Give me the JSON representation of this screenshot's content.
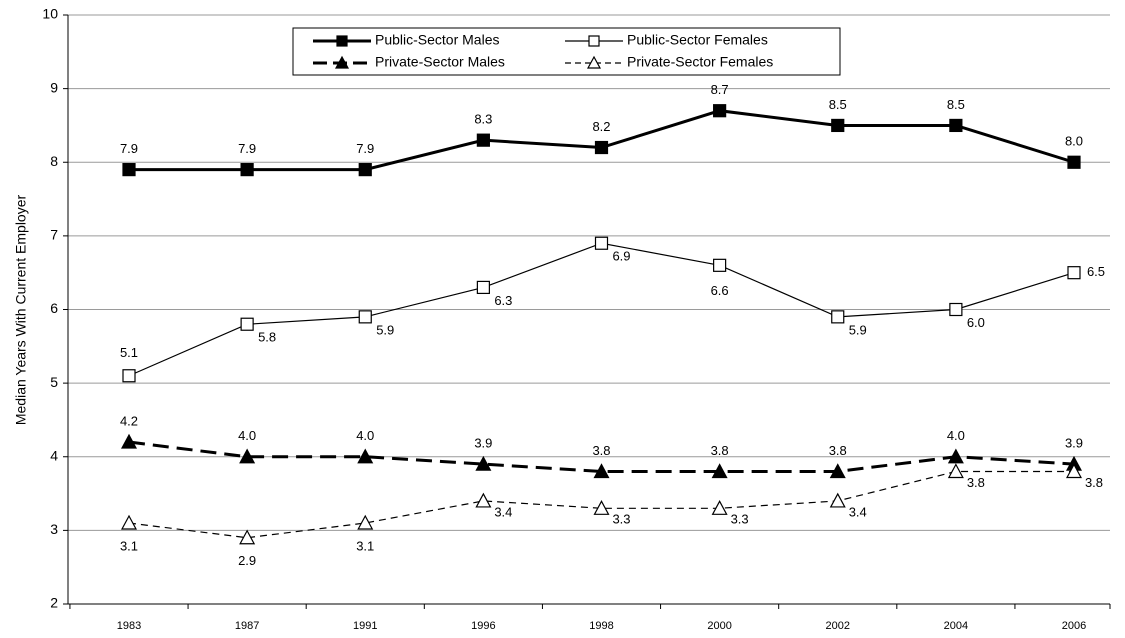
{
  "chart_data": {
    "type": "line",
    "y_label": "Median Years With Current Employer",
    "categories": [
      "1983",
      "1987",
      "1991",
      "1996",
      "1998",
      "2000",
      "2002",
      "2004",
      "2006"
    ],
    "ylim": [
      2,
      10
    ],
    "yticks": [
      2,
      3,
      4,
      5,
      6,
      7,
      8,
      9,
      10
    ],
    "grid": true,
    "series": [
      {
        "name": "Public-Sector Males",
        "color": "#000000",
        "line_width": 3,
        "dashed": false,
        "marker": "square",
        "filled": true,
        "values": [
          7.9,
          7.9,
          7.9,
          8.3,
          8.2,
          8.7,
          8.5,
          8.5,
          8.0
        ],
        "value_labels": [
          "7.9",
          "7.9",
          "7.9",
          "8.3",
          "8.2",
          "8.7",
          "8.5",
          "8.5",
          "8.0"
        ]
      },
      {
        "name": "Public-Sector Females",
        "color": "#000000",
        "line_width": 1.2,
        "dashed": false,
        "marker": "square",
        "filled": false,
        "values": [
          5.1,
          5.8,
          5.9,
          6.3,
          6.9,
          6.6,
          5.9,
          6.0,
          6.5
        ],
        "value_labels": [
          "5.1",
          "5.8",
          "5.9",
          "6.3",
          "6.9",
          "6.6",
          "5.9",
          "6.0",
          "6.5"
        ]
      },
      {
        "name": "Private-Sector Males",
        "color": "#000000",
        "line_width": 3,
        "dashed": true,
        "marker": "triangle",
        "filled": true,
        "values": [
          4.2,
          4.0,
          4.0,
          3.9,
          3.8,
          3.8,
          3.8,
          4.0,
          3.9
        ],
        "value_labels": [
          "4.2",
          "4.0",
          "4.0",
          "3.9",
          "3.8",
          "3.8",
          "3.8",
          "4.0",
          "3.9"
        ]
      },
      {
        "name": "Private-Sector Females",
        "color": "#000000",
        "line_width": 1.2,
        "dashed": true,
        "marker": "triangle",
        "filled": false,
        "values": [
          3.1,
          2.9,
          3.1,
          3.4,
          3.3,
          3.3,
          3.4,
          3.8,
          3.8
        ],
        "value_labels": [
          "3.1",
          "2.9",
          "3.1",
          "3.4",
          "3.3",
          "3.3",
          "3.4",
          "3.8",
          "3.8"
        ]
      }
    ]
  }
}
